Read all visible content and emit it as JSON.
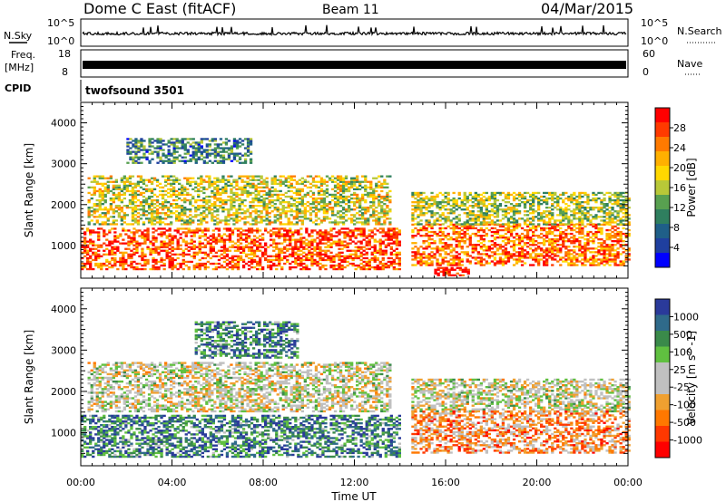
{
  "header": {
    "station": "Dome C East (fitACF)",
    "beam": "Beam 11",
    "date": "04/Mar/2015"
  },
  "panels": {
    "nsky": {
      "label": "N.Sky",
      "left_ticks": [
        "10^5",
        "10^0"
      ],
      "right_label": "N.Search",
      "right_ticks": [
        "10^5",
        "10^0"
      ]
    },
    "freq": {
      "label_top": "Freq.",
      "label_unit": "[MHz]",
      "left_ticks": [
        "18",
        "8"
      ],
      "right_label": "Nave",
      "right_ticks": [
        "60",
        "0"
      ]
    },
    "cpid": {
      "label": "CPID",
      "value": "twofsound 3501"
    }
  },
  "chart_data": [
    {
      "type": "heatmap",
      "title": "",
      "quantity": "Power",
      "ylabel": "Slant Range [km]",
      "xlabel": "Time UT",
      "xlim_hours": [
        0,
        24
      ],
      "ylim_km": [
        200,
        4500
      ],
      "y_ticks": [
        "1000",
        "2000",
        "3000",
        "4000"
      ],
      "x_ticks": [
        "00:00",
        "04:00",
        "08:00",
        "12:00",
        "16:00",
        "20:00",
        "00:00"
      ],
      "colorbar": {
        "label": "Power [dB]",
        "ticks": [
          "28",
          "24",
          "20",
          "16",
          "12",
          "8",
          "4"
        ],
        "colors": [
          "#ff0000",
          "#ff3a00",
          "#ff7a00",
          "#ffb000",
          "#ffd800",
          "#b8c838",
          "#58a050",
          "#2f7f5f",
          "#1f5f88",
          "#1f3f9f",
          "#0000ff"
        ]
      },
      "bands": [
        {
          "t0": 0.0,
          "t1": 14.0,
          "r0": 400,
          "r1": 1400,
          "level": 0.85
        },
        {
          "t0": 0.3,
          "t1": 13.5,
          "r0": 1500,
          "r1": 2700,
          "level": 0.55
        },
        {
          "t0": 14.5,
          "t1": 24.0,
          "r0": 500,
          "r1": 1500,
          "level": 0.8
        },
        {
          "t0": 14.5,
          "t1": 24.0,
          "r0": 1500,
          "r1": 2300,
          "level": 0.5
        },
        {
          "t0": 2.0,
          "t1": 7.5,
          "r0": 3000,
          "r1": 3600,
          "level": 0.3
        },
        {
          "t0": 15.5,
          "t1": 17.0,
          "r0": 250,
          "r1": 450,
          "level": 1.0
        }
      ]
    },
    {
      "type": "heatmap",
      "title": "",
      "quantity": "Velocity",
      "ylabel": "Slant Range [km]",
      "xlabel": "Time UT",
      "xlim_hours": [
        0,
        24
      ],
      "ylim_km": [
        200,
        4500
      ],
      "y_ticks": [
        "1000",
        "2000",
        "3000",
        "4000"
      ],
      "x_ticks": [
        "00:00",
        "04:00",
        "08:00",
        "12:00",
        "16:00",
        "20:00",
        "00:00"
      ],
      "colorbar": {
        "label": "Velocity [m s^-1]",
        "ticks": [
          "1000",
          "500",
          "100",
          "25",
          "-25",
          "-100",
          "-500",
          "-1000"
        ],
        "colors": [
          "#2a3a9a",
          "#2f6a8a",
          "#3a8a4a",
          "#60c040",
          "#c0c0c0",
          "#c0c0c0",
          "#f0a030",
          "#ff7800",
          "#ff3800",
          "#ff0000"
        ]
      },
      "bands": [
        {
          "t0": 0.3,
          "t1": 13.5,
          "r0": 1500,
          "r1": 2700,
          "level": 0.5
        },
        {
          "t0": 0.0,
          "t1": 14.0,
          "r0": 400,
          "r1": 1400,
          "level": 0.8
        },
        {
          "t0": 14.5,
          "t1": 24.0,
          "r0": 1500,
          "r1": 2300,
          "level": 0.5
        },
        {
          "t0": 14.5,
          "t1": 24.0,
          "r0": 500,
          "r1": 1500,
          "level": 0.3
        },
        {
          "t0": 5.0,
          "t1": 9.5,
          "r0": 2800,
          "r1": 3700,
          "level": 0.8
        }
      ]
    }
  ]
}
